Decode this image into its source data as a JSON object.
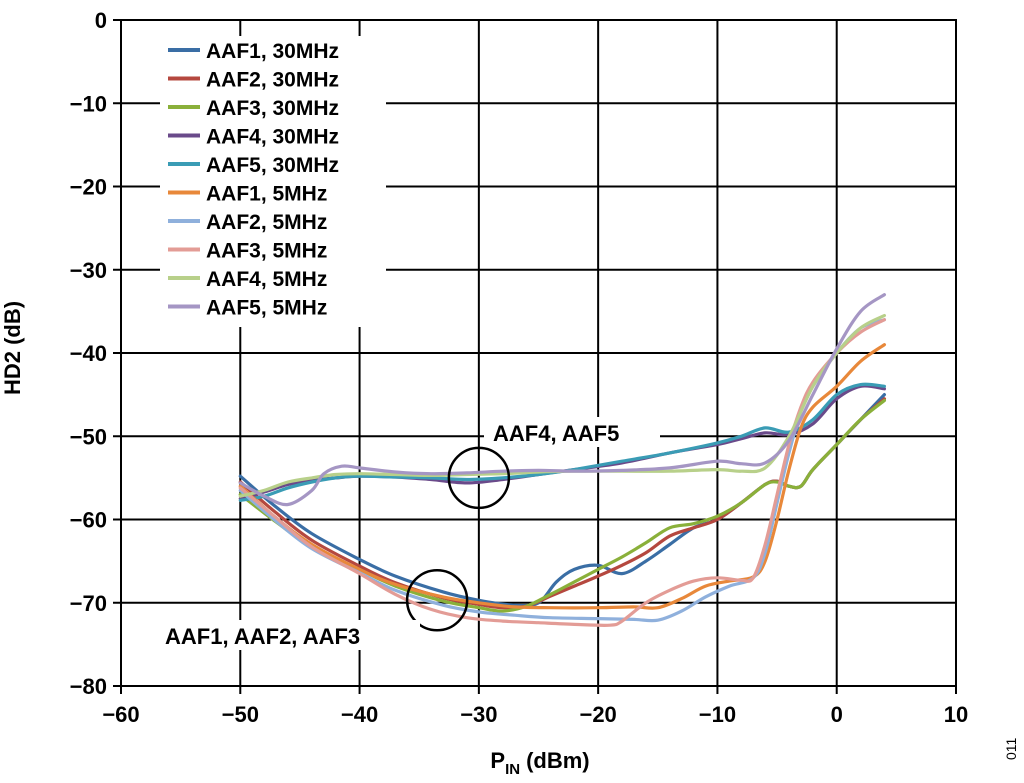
{
  "chart_data": {
    "type": "line",
    "xlabel": "P",
    "xlabel_sub": "IN",
    "xlabel_unit": "(dBm)",
    "ylabel": "HD2 (dB)",
    "xlim": [
      -60,
      10
    ],
    "ylim": [
      -80,
      0
    ],
    "x_ticks": [
      -60,
      -50,
      -40,
      -30,
      -20,
      -10,
      0,
      10
    ],
    "y_ticks": [
      0,
      -10,
      -20,
      -30,
      -40,
      -50,
      -60,
      -70,
      -80
    ],
    "x_tick_labels": [
      "−60",
      "−50",
      "−40",
      "−30",
      "−20",
      "−10",
      "0",
      "10"
    ],
    "y_tick_labels": [
      "0",
      "−10",
      "−20",
      "−30",
      "−40",
      "−50",
      "−60",
      "−70",
      "−80"
    ],
    "grid": true,
    "legend_position": "top-left",
    "series": [
      {
        "name": "AAF1, 30MHz",
        "color": "#3a6ea5",
        "points": [
          [
            -50,
            -54.8
          ],
          [
            -47,
            -58.5
          ],
          [
            -44,
            -61.7
          ],
          [
            -40,
            -64.8
          ],
          [
            -37,
            -66.8
          ],
          [
            -33,
            -68.7
          ],
          [
            -30,
            -69.7
          ],
          [
            -27,
            -70.3
          ],
          [
            -25,
            -70
          ],
          [
            -23.5,
            -67.5
          ],
          [
            -22,
            -66
          ],
          [
            -20,
            -65.5
          ],
          [
            -18,
            -66.5
          ],
          [
            -16,
            -65
          ],
          [
            -14,
            -63
          ],
          [
            -12,
            -61
          ],
          [
            -10,
            -60
          ],
          [
            -8,
            -58
          ],
          [
            -6,
            -55.8
          ],
          [
            -5,
            -55.4
          ],
          [
            -4,
            -56
          ],
          [
            -3,
            -56
          ],
          [
            -2,
            -54
          ],
          [
            0,
            -51
          ],
          [
            2,
            -48
          ],
          [
            4,
            -45
          ]
        ]
      },
      {
        "name": "AAF2, 30MHz",
        "color": "#b5483f",
        "points": [
          [
            -50,
            -55.5
          ],
          [
            -47,
            -59.2
          ],
          [
            -44,
            -62.5
          ],
          [
            -40,
            -65.6
          ],
          [
            -37,
            -67.6
          ],
          [
            -33,
            -69.4
          ],
          [
            -30,
            -70.2
          ],
          [
            -28,
            -70.6
          ],
          [
            -26,
            -70.4
          ],
          [
            -24,
            -69.2
          ],
          [
            -22,
            -68
          ],
          [
            -20,
            -66.8
          ],
          [
            -18,
            -65.5
          ],
          [
            -16,
            -64
          ],
          [
            -14,
            -62
          ],
          [
            -12,
            -61
          ],
          [
            -10,
            -60
          ],
          [
            -8,
            -58
          ],
          [
            -6,
            -55.8
          ],
          [
            -5,
            -55.4
          ],
          [
            -4,
            -56
          ],
          [
            -3,
            -56
          ],
          [
            -2,
            -54
          ],
          [
            0,
            -51
          ],
          [
            2,
            -48
          ],
          [
            4,
            -45.5
          ]
        ]
      },
      {
        "name": "AAF3, 30MHz",
        "color": "#8ab03a",
        "points": [
          [
            -50,
            -57
          ],
          [
            -47,
            -60.3
          ],
          [
            -44,
            -63.3
          ],
          [
            -40,
            -66
          ],
          [
            -37,
            -68
          ],
          [
            -33,
            -69.8
          ],
          [
            -30,
            -70.6
          ],
          [
            -28,
            -71
          ],
          [
            -26,
            -70.4
          ],
          [
            -24,
            -69
          ],
          [
            -22,
            -67.5
          ],
          [
            -20,
            -66
          ],
          [
            -18,
            -64.5
          ],
          [
            -16,
            -62.8
          ],
          [
            -14,
            -61
          ],
          [
            -12,
            -60.5
          ],
          [
            -10,
            -59.6
          ],
          [
            -8,
            -58
          ],
          [
            -6,
            -55.8
          ],
          [
            -5,
            -55.5
          ],
          [
            -4,
            -56
          ],
          [
            -3,
            -56
          ],
          [
            -2,
            -54
          ],
          [
            0,
            -51
          ],
          [
            2,
            -48
          ],
          [
            4,
            -45.7
          ]
        ]
      },
      {
        "name": "AAF4, 30MHz",
        "color": "#6a4a8a",
        "points": [
          [
            -50,
            -57.5
          ],
          [
            -48,
            -56.7
          ],
          [
            -46,
            -55.8
          ],
          [
            -44,
            -55.3
          ],
          [
            -42,
            -55
          ],
          [
            -40,
            -54.8
          ],
          [
            -37,
            -54.9
          ],
          [
            -34,
            -55.2
          ],
          [
            -31,
            -55.6
          ],
          [
            -28,
            -55.2
          ],
          [
            -25,
            -54.6
          ],
          [
            -22,
            -54
          ],
          [
            -18,
            -53.2
          ],
          [
            -14,
            -52
          ],
          [
            -10,
            -51
          ],
          [
            -8,
            -50.3
          ],
          [
            -6,
            -49.6
          ],
          [
            -4,
            -49.8
          ],
          [
            -2,
            -48.5
          ],
          [
            0,
            -45.5
          ],
          [
            2,
            -44
          ],
          [
            4,
            -44.3
          ]
        ]
      },
      {
        "name": "AAF5, 30MHz",
        "color": "#3a9cb5",
        "points": [
          [
            -50,
            -57.7
          ],
          [
            -48,
            -57.2
          ],
          [
            -46,
            -56.2
          ],
          [
            -44,
            -55.5
          ],
          [
            -42,
            -55
          ],
          [
            -40,
            -54.8
          ],
          [
            -37,
            -54.9
          ],
          [
            -34,
            -55
          ],
          [
            -31,
            -55.2
          ],
          [
            -28,
            -55
          ],
          [
            -25,
            -54.6
          ],
          [
            -22,
            -54
          ],
          [
            -18,
            -53
          ],
          [
            -14,
            -52
          ],
          [
            -10,
            -50.8
          ],
          [
            -8,
            -50
          ],
          [
            -6,
            -49
          ],
          [
            -4,
            -49.5
          ],
          [
            -2,
            -48
          ],
          [
            0,
            -45
          ],
          [
            2,
            -43.8
          ],
          [
            4,
            -44
          ]
        ]
      },
      {
        "name": "AAF1, 5MHz",
        "color": "#e8883a",
        "points": [
          [
            -50,
            -56
          ],
          [
            -47,
            -59.8
          ],
          [
            -44,
            -63
          ],
          [
            -40,
            -66
          ],
          [
            -37,
            -67.8
          ],
          [
            -33,
            -69.3
          ],
          [
            -30,
            -70
          ],
          [
            -27,
            -70.5
          ],
          [
            -24,
            -70.6
          ],
          [
            -20,
            -70.6
          ],
          [
            -17,
            -70.5
          ],
          [
            -15,
            -70.6
          ],
          [
            -13,
            -69.5
          ],
          [
            -11,
            -68
          ],
          [
            -9,
            -67.4
          ],
          [
            -7,
            -66.9
          ],
          [
            -6,
            -65
          ],
          [
            -5,
            -60
          ],
          [
            -4,
            -54
          ],
          [
            -3,
            -49
          ],
          [
            -2,
            -46.5
          ],
          [
            0,
            -44
          ],
          [
            2,
            -41
          ],
          [
            4,
            -39
          ]
        ]
      },
      {
        "name": "AAF2, 5MHz",
        "color": "#8fb0dc",
        "points": [
          [
            -50,
            -56.5
          ],
          [
            -47,
            -60.2
          ],
          [
            -44,
            -63.5
          ],
          [
            -40,
            -66.4
          ],
          [
            -37,
            -68.5
          ],
          [
            -33,
            -70.3
          ],
          [
            -30,
            -71.1
          ],
          [
            -27,
            -71.5
          ],
          [
            -24,
            -71.8
          ],
          [
            -20,
            -71.9
          ],
          [
            -17,
            -72
          ],
          [
            -15,
            -72.1
          ],
          [
            -13,
            -71
          ],
          [
            -11,
            -69.3
          ],
          [
            -9,
            -68
          ],
          [
            -7,
            -67
          ],
          [
            -6,
            -64
          ],
          [
            -5,
            -58
          ],
          [
            -4,
            -52
          ],
          [
            -3,
            -47
          ],
          [
            -2,
            -44
          ],
          [
            0,
            -40
          ],
          [
            2,
            -37
          ],
          [
            4,
            -36
          ]
        ]
      },
      {
        "name": "AAF3, 5MHz",
        "color": "#e39c96",
        "points": [
          [
            -50,
            -56.2
          ],
          [
            -47,
            -59.8
          ],
          [
            -44,
            -63.3
          ],
          [
            -40,
            -66.5
          ],
          [
            -37,
            -69
          ],
          [
            -34,
            -70.8
          ],
          [
            -31,
            -71.8
          ],
          [
            -28,
            -72.2
          ],
          [
            -25,
            -72.4
          ],
          [
            -22,
            -72.6
          ],
          [
            -19,
            -72.7
          ],
          [
            -18,
            -72.2
          ],
          [
            -16,
            -70
          ],
          [
            -14,
            -68.5
          ],
          [
            -12,
            -67.4
          ],
          [
            -10,
            -67
          ],
          [
            -8,
            -67.3
          ],
          [
            -7,
            -67
          ],
          [
            -6,
            -63
          ],
          [
            -5,
            -57
          ],
          [
            -4,
            -51
          ],
          [
            -3,
            -46.5
          ],
          [
            -2,
            -43.5
          ],
          [
            0,
            -40
          ],
          [
            2,
            -37.5
          ],
          [
            4,
            -36
          ]
        ]
      },
      {
        "name": "AAF4, 5MHz",
        "color": "#b8d08a",
        "points": [
          [
            -50,
            -57.2
          ],
          [
            -48,
            -56.5
          ],
          [
            -46,
            -55.5
          ],
          [
            -44,
            -55
          ],
          [
            -42,
            -54.6
          ],
          [
            -40,
            -54.5
          ],
          [
            -37,
            -54.6
          ],
          [
            -34,
            -54.7
          ],
          [
            -31,
            -54.6
          ],
          [
            -28,
            -54.5
          ],
          [
            -25,
            -54.3
          ],
          [
            -22,
            -54.2
          ],
          [
            -18,
            -54.2
          ],
          [
            -14,
            -54.2
          ],
          [
            -10,
            -54
          ],
          [
            -8,
            -54.2
          ],
          [
            -6,
            -53.8
          ],
          [
            -4,
            -50
          ],
          [
            -2,
            -44
          ],
          [
            0,
            -40
          ],
          [
            2,
            -37
          ],
          [
            4,
            -35.5
          ]
        ]
      },
      {
        "name": "AAF5, 5MHz",
        "color": "#a596c4",
        "points": [
          [
            -50,
            -55.6
          ],
          [
            -48,
            -57.2
          ],
          [
            -46,
            -58.2
          ],
          [
            -44,
            -56.5
          ],
          [
            -43,
            -54.5
          ],
          [
            -41.5,
            -53.6
          ],
          [
            -40,
            -53.8
          ],
          [
            -37,
            -54.3
          ],
          [
            -34,
            -54.5
          ],
          [
            -31,
            -54.4
          ],
          [
            -28,
            -54.2
          ],
          [
            -25,
            -54.1
          ],
          [
            -22,
            -54.2
          ],
          [
            -18,
            -54.1
          ],
          [
            -14,
            -53.8
          ],
          [
            -10,
            -53
          ],
          [
            -8,
            -53.3
          ],
          [
            -6,
            -53.2
          ],
          [
            -4,
            -50.5
          ],
          [
            -2,
            -45
          ],
          [
            0,
            -39.5
          ],
          [
            2,
            -35
          ],
          [
            4,
            -33
          ]
        ]
      }
    ],
    "annotations": [
      {
        "text": "AAF4, AAF5",
        "circle_center": [
          -30,
          -55
        ]
      },
      {
        "text": "AAF1, AAF2, AAF3",
        "circle_center": [
          -33.5,
          -69.7
        ]
      }
    ],
    "figure_id": "011"
  }
}
